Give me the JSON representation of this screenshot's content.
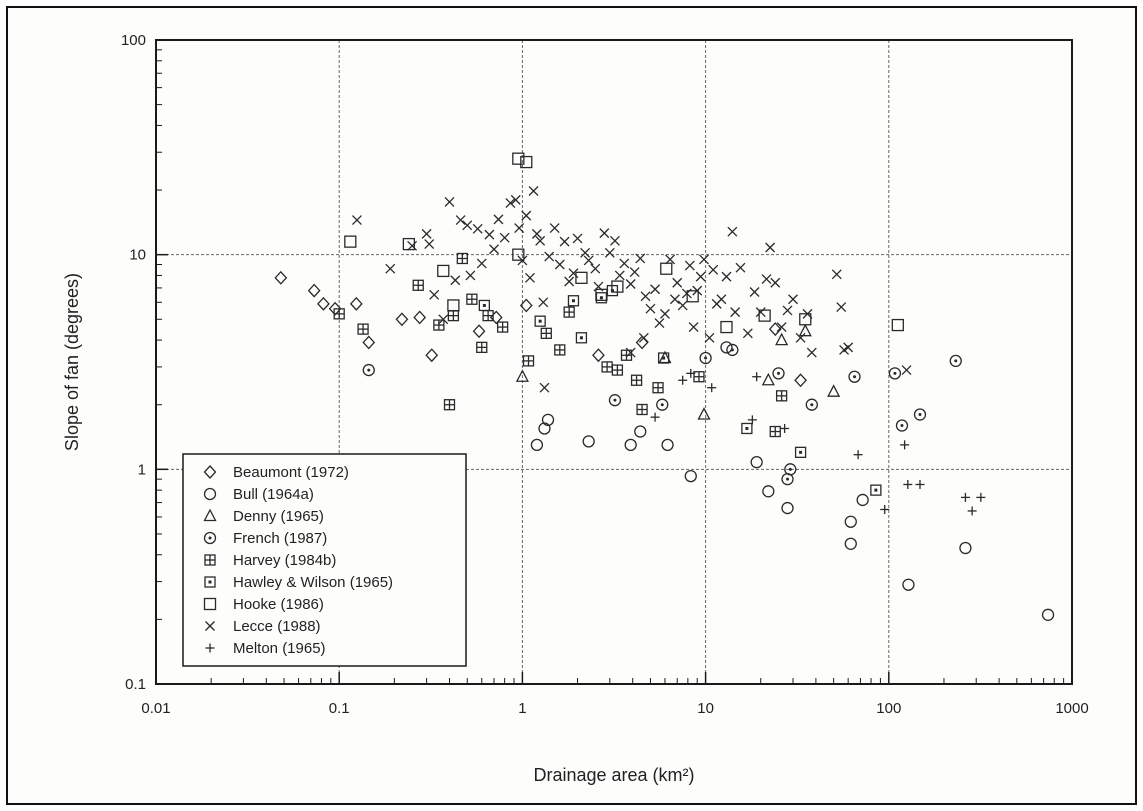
{
  "chart_data": {
    "type": "scatter",
    "xscale": "log",
    "yscale": "log",
    "xlim": [
      0.01,
      1000
    ],
    "ylim": [
      0.1,
      100
    ],
    "grid": true,
    "legend_position": "lower-left",
    "xlabel": "Drainage area (km²)",
    "ylabel": "Slope of fan (degrees)",
    "xticks": [
      {
        "value": 0.01,
        "label": "0.01"
      },
      {
        "value": 0.1,
        "label": "0.1"
      },
      {
        "value": 1,
        "label": "1"
      },
      {
        "value": 10,
        "label": "10"
      },
      {
        "value": 100,
        "label": "100"
      },
      {
        "value": 1000,
        "label": "1000"
      }
    ],
    "yticks": [
      {
        "value": 0.1,
        "label": "0.1"
      },
      {
        "value": 1,
        "label": "1"
      },
      {
        "value": 10,
        "label": "10"
      },
      {
        "value": 100,
        "label": "100"
      }
    ],
    "series": [
      {
        "name": "Beaumont (1972)",
        "marker": "diamond",
        "points": [
          [
            0.048,
            7.8
          ],
          [
            0.073,
            6.8
          ],
          [
            0.082,
            5.9
          ],
          [
            0.095,
            5.6
          ],
          [
            0.124,
            5.9
          ],
          [
            0.145,
            3.9
          ],
          [
            0.22,
            5.0
          ],
          [
            0.275,
            5.1
          ],
          [
            0.32,
            3.4
          ],
          [
            0.58,
            4.4
          ],
          [
            0.72,
            5.1
          ],
          [
            1.05,
            5.8
          ],
          [
            2.6,
            3.4
          ],
          [
            4.5,
            3.9
          ],
          [
            24,
            4.5
          ],
          [
            33,
            2.6
          ]
        ]
      },
      {
        "name": "Bull (1964a)",
        "marker": "circle",
        "points": [
          [
            1.2,
            1.3
          ],
          [
            1.32,
            1.55
          ],
          [
            1.38,
            1.7
          ],
          [
            2.3,
            1.35
          ],
          [
            3.9,
            1.3
          ],
          [
            4.4,
            1.5
          ],
          [
            6.2,
            1.3
          ],
          [
            8.3,
            0.93
          ],
          [
            19,
            1.08
          ],
          [
            22,
            0.79
          ],
          [
            28,
            0.66
          ],
          [
            62,
            0.57
          ],
          [
            62,
            0.45
          ],
          [
            72,
            0.72
          ],
          [
            128,
            0.29
          ],
          [
            262,
            0.43
          ],
          [
            740,
            0.21
          ],
          [
            13,
            3.7
          ]
        ]
      },
      {
        "name": "Denny (1965)",
        "marker": "triangle",
        "points": [
          [
            1.0,
            2.7
          ],
          [
            6.0,
            3.3
          ],
          [
            9.8,
            1.8
          ],
          [
            22,
            2.6
          ],
          [
            35,
            4.4
          ],
          [
            50,
            2.3
          ],
          [
            26,
            4.0
          ]
        ]
      },
      {
        "name": "French (1987)",
        "marker": "circle-dot",
        "points": [
          [
            0.145,
            2.9
          ],
          [
            3.2,
            2.1
          ],
          [
            5.8,
            2.0
          ],
          [
            10,
            3.3
          ],
          [
            25,
            2.8
          ],
          [
            28,
            0.9
          ],
          [
            29,
            1.0
          ],
          [
            38,
            2.0
          ],
          [
            65,
            2.7
          ],
          [
            108,
            2.8
          ],
          [
            118,
            1.6
          ],
          [
            148,
            1.8
          ],
          [
            232,
            3.2
          ],
          [
            14,
            3.6
          ]
        ]
      },
      {
        "name": "Harvey (1984b)",
        "marker": "boxed-plus",
        "points": [
          [
            0.1,
            5.3
          ],
          [
            0.135,
            4.5
          ],
          [
            0.27,
            7.2
          ],
          [
            0.35,
            4.7
          ],
          [
            0.4,
            2.0
          ],
          [
            0.42,
            5.2
          ],
          [
            0.47,
            9.6
          ],
          [
            0.53,
            6.2
          ],
          [
            0.6,
            3.7
          ],
          [
            0.65,
            5.2
          ],
          [
            0.78,
            4.6
          ],
          [
            1.08,
            3.2
          ],
          [
            1.35,
            4.3
          ],
          [
            1.6,
            3.6
          ],
          [
            1.8,
            5.4
          ],
          [
            2.9,
            3.0
          ],
          [
            3.3,
            2.9
          ],
          [
            3.7,
            3.4
          ],
          [
            4.2,
            2.6
          ],
          [
            4.5,
            1.9
          ],
          [
            5.5,
            2.4
          ],
          [
            9.2,
            2.7
          ],
          [
            24,
            1.5
          ],
          [
            26,
            2.2
          ]
        ]
      },
      {
        "name": "Hawley & Wilson (1965)",
        "marker": "boxed-dot",
        "points": [
          [
            0.62,
            5.8
          ],
          [
            1.25,
            4.9
          ],
          [
            1.9,
            6.1
          ],
          [
            2.7,
            6.3
          ],
          [
            3.1,
            6.8
          ],
          [
            5.9,
            3.3
          ],
          [
            16.8,
            1.55
          ],
          [
            33,
            1.2
          ],
          [
            85,
            0.8
          ],
          [
            2.1,
            4.1
          ]
        ]
      },
      {
        "name": "Hooke (1986)",
        "marker": "square",
        "points": [
          [
            0.95,
            28
          ],
          [
            1.05,
            27
          ],
          [
            0.115,
            11.5
          ],
          [
            0.24,
            11.2
          ],
          [
            0.37,
            8.4
          ],
          [
            0.42,
            5.8
          ],
          [
            0.95,
            10
          ],
          [
            2.1,
            7.8
          ],
          [
            2.7,
            6.5
          ],
          [
            3.3,
            7.1
          ],
          [
            6.1,
            8.6
          ],
          [
            8.5,
            6.4
          ],
          [
            13,
            4.6
          ],
          [
            21,
            5.2
          ],
          [
            35,
            5.0
          ],
          [
            112,
            4.7
          ]
        ]
      },
      {
        "name": "Lecce (1988)",
        "marker": "x",
        "points": [
          [
            0.125,
            14.5
          ],
          [
            0.19,
            8.6
          ],
          [
            0.25,
            11.0
          ],
          [
            0.3,
            12.5
          ],
          [
            0.31,
            11.2
          ],
          [
            0.33,
            6.5
          ],
          [
            0.37,
            5.0
          ],
          [
            0.4,
            17.6
          ],
          [
            0.43,
            7.6
          ],
          [
            0.46,
            14.5
          ],
          [
            0.5,
            13.7
          ],
          [
            0.52,
            8.0
          ],
          [
            0.57,
            13.2
          ],
          [
            0.6,
            9.1
          ],
          [
            0.66,
            12.4
          ],
          [
            0.7,
            10.6
          ],
          [
            0.74,
            14.6
          ],
          [
            0.8,
            12.0
          ],
          [
            0.86,
            17.4
          ],
          [
            0.92,
            18.0
          ],
          [
            0.96,
            13.3
          ],
          [
            1.0,
            9.4
          ],
          [
            1.05,
            15.2
          ],
          [
            1.1,
            7.8
          ],
          [
            1.15,
            19.8
          ],
          [
            1.2,
            12.5
          ],
          [
            1.25,
            11.6
          ],
          [
            1.3,
            6.0
          ],
          [
            1.32,
            2.4
          ],
          [
            1.4,
            9.8
          ],
          [
            1.5,
            13.3
          ],
          [
            1.6,
            9.0
          ],
          [
            1.7,
            11.5
          ],
          [
            1.8,
            7.5
          ],
          [
            1.9,
            8.2
          ],
          [
            2.0,
            11.9
          ],
          [
            2.2,
            10.2
          ],
          [
            2.3,
            9.4
          ],
          [
            2.5,
            8.6
          ],
          [
            2.6,
            7.1
          ],
          [
            2.8,
            12.6
          ],
          [
            3.0,
            10.2
          ],
          [
            3.2,
            11.6
          ],
          [
            3.4,
            8.0
          ],
          [
            3.6,
            9.1
          ],
          [
            3.9,
            7.3
          ],
          [
            4.1,
            8.3
          ],
          [
            4.4,
            9.6
          ],
          [
            4.7,
            6.4
          ],
          [
            5.0,
            5.6
          ],
          [
            5.3,
            6.9
          ],
          [
            5.6,
            4.8
          ],
          [
            6.0,
            5.3
          ],
          [
            6.4,
            9.5
          ],
          [
            6.8,
            6.2
          ],
          [
            7.0,
            7.4
          ],
          [
            7.5,
            5.8
          ],
          [
            7.9,
            6.6
          ],
          [
            8.2,
            8.9
          ],
          [
            8.6,
            4.6
          ],
          [
            9.0,
            6.8
          ],
          [
            9.4,
            7.9
          ],
          [
            9.8,
            9.5
          ],
          [
            10.5,
            4.1
          ],
          [
            11,
            8.5
          ],
          [
            11.5,
            5.9
          ],
          [
            12.2,
            6.2
          ],
          [
            13,
            7.9
          ],
          [
            14,
            12.8
          ],
          [
            14.5,
            5.4
          ],
          [
            15.5,
            8.7
          ],
          [
            17,
            4.3
          ],
          [
            18.5,
            6.7
          ],
          [
            20,
            5.4
          ],
          [
            21.5,
            7.7
          ],
          [
            22.5,
            10.8
          ],
          [
            24,
            7.4
          ],
          [
            26,
            4.6
          ],
          [
            28,
            5.5
          ],
          [
            30,
            6.2
          ],
          [
            33,
            4.1
          ],
          [
            36,
            5.3
          ],
          [
            38,
            3.5
          ],
          [
            52,
            8.1
          ],
          [
            55,
            5.7
          ],
          [
            57,
            3.6
          ],
          [
            60,
            3.7
          ],
          [
            125,
            2.9
          ],
          [
            3.9,
            3.5
          ],
          [
            4.6,
            4.1
          ]
        ]
      },
      {
        "name": "Melton (1965)",
        "marker": "plus",
        "points": [
          [
            5.3,
            1.75
          ],
          [
            7.5,
            2.6
          ],
          [
            8.3,
            2.8
          ],
          [
            10.8,
            2.4
          ],
          [
            18,
            1.7
          ],
          [
            19,
            2.7
          ],
          [
            27,
            1.55
          ],
          [
            68,
            1.17
          ],
          [
            95,
            0.65
          ],
          [
            122,
            1.3
          ],
          [
            127,
            0.85
          ],
          [
            148,
            0.85
          ],
          [
            262,
            0.74
          ],
          [
            285,
            0.64
          ],
          [
            318,
            0.74
          ]
        ]
      }
    ]
  }
}
